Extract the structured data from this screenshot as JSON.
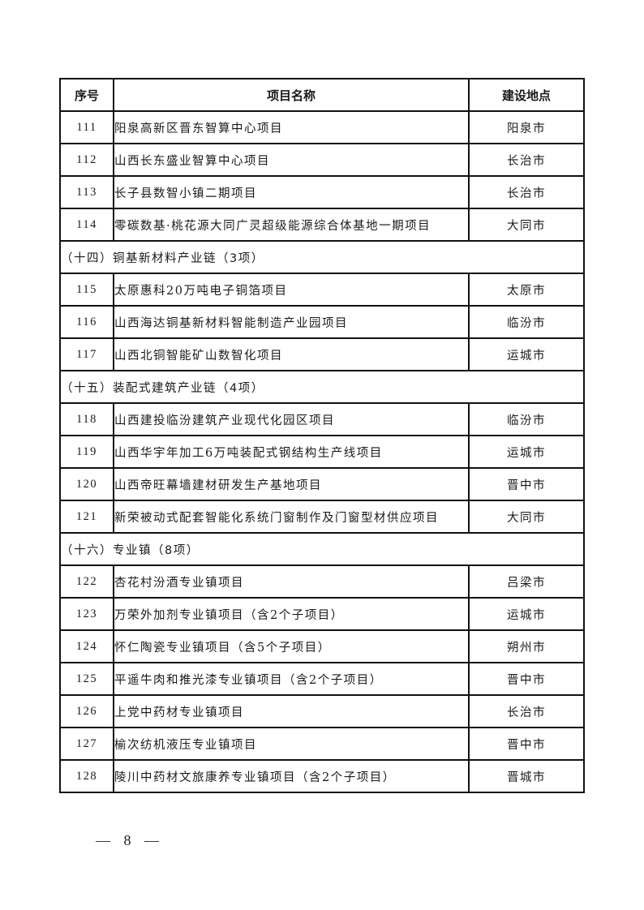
{
  "table": {
    "headers": [
      "序号",
      "项目名称",
      "建设地点"
    ],
    "rows": [
      {
        "type": "item",
        "no": "111",
        "name": "阳泉高新区晋东智算中心项目",
        "location": "阳泉市"
      },
      {
        "type": "item",
        "no": "112",
        "name": "山西长东盛业智算中心项目",
        "location": "长治市"
      },
      {
        "type": "item",
        "no": "113",
        "name": "长子县数智小镇二期项目",
        "location": "长治市"
      },
      {
        "type": "item",
        "no": "114",
        "name": "零碳数基·桃花源大同广灵超级能源综合体基地一期项目",
        "location": "大同市"
      },
      {
        "type": "section",
        "title": "（十四）铜基新材料产业链（3项）"
      },
      {
        "type": "item",
        "no": "115",
        "name": "太原惠科20万吨电子铜箔项目",
        "location": "太原市"
      },
      {
        "type": "item",
        "no": "116",
        "name": "山西海达铜基新材料智能制造产业园项目",
        "location": "临汾市"
      },
      {
        "type": "item",
        "no": "117",
        "name": "山西北铜智能矿山数智化项目",
        "location": "运城市"
      },
      {
        "type": "section",
        "title": "（十五）装配式建筑产业链（4项）"
      },
      {
        "type": "item",
        "no": "118",
        "name": "山西建投临汾建筑产业现代化园区项目",
        "location": "临汾市"
      },
      {
        "type": "item",
        "no": "119",
        "name": "山西华宇年加工6万吨装配式钢结构生产线项目",
        "location": "运城市"
      },
      {
        "type": "item",
        "no": "120",
        "name": "山西帝旺幕墙建材研发生产基地项目",
        "location": "晋中市"
      },
      {
        "type": "item",
        "no": "121",
        "name": "新荣被动式配套智能化系统门窗制作及门窗型材供应项目",
        "location": "大同市"
      },
      {
        "type": "section",
        "title": "（十六）专业镇（8项）"
      },
      {
        "type": "item",
        "no": "122",
        "name": "杏花村汾酒专业镇项目",
        "location": "吕梁市"
      },
      {
        "type": "item",
        "no": "123",
        "name": "万荣外加剂专业镇项目（含2个子项目）",
        "location": "运城市"
      },
      {
        "type": "item",
        "no": "124",
        "name": "怀仁陶瓷专业镇项目（含5个子项目）",
        "location": "朔州市"
      },
      {
        "type": "item",
        "no": "125",
        "name": "平遥牛肉和推光漆专业镇项目（含2个子项目）",
        "location": "晋中市"
      },
      {
        "type": "item",
        "no": "126",
        "name": "上党中药材专业镇项目",
        "location": "长治市"
      },
      {
        "type": "item",
        "no": "127",
        "name": "榆次纺机液压专业镇项目",
        "location": "晋中市"
      },
      {
        "type": "item",
        "no": "128",
        "name": "陵川中药材文旅康养专业镇项目（含2个子项目）",
        "location": "晋城市"
      }
    ]
  },
  "footer": {
    "page_number": "— 8 —"
  }
}
